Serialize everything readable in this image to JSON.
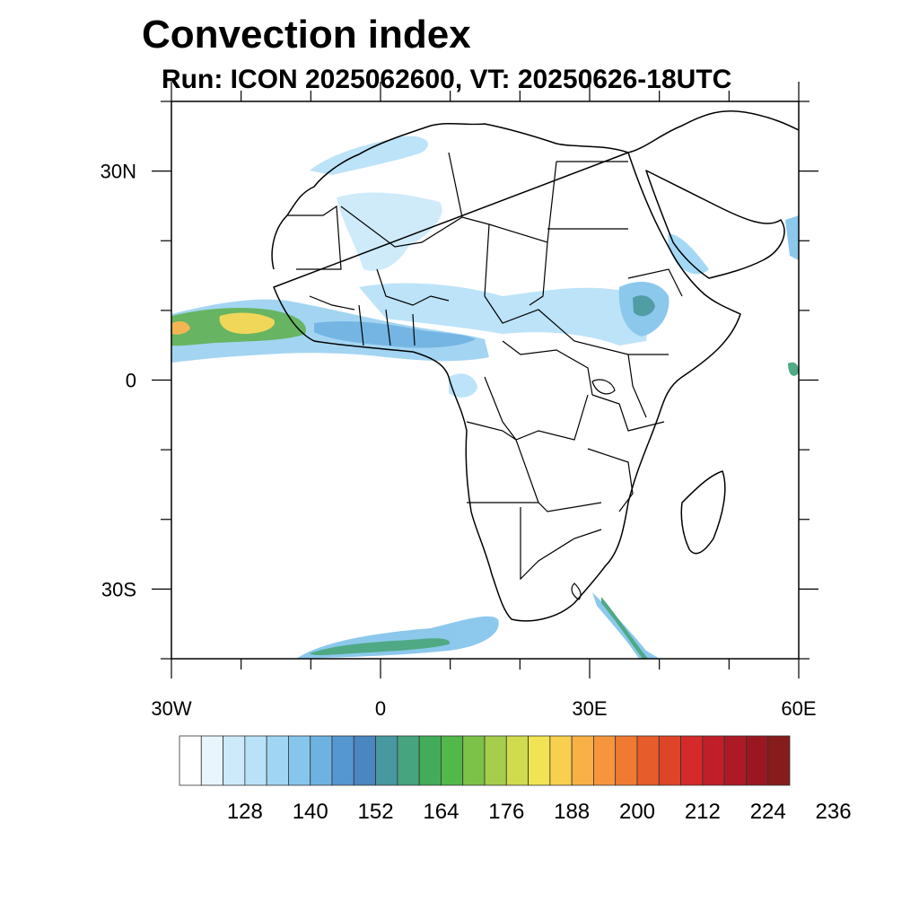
{
  "title": "Convection index",
  "subtitle": "Run: ICON 2025062600,  VT: 20250626-18UTC",
  "map": {
    "lon_range": [
      -30,
      60
    ],
    "lat_range": [
      -40,
      40
    ],
    "lat_ticks": [
      {
        "value": 30,
        "label": "30N"
      },
      {
        "value": 0,
        "label": "0"
      },
      {
        "value": -30,
        "label": "30S"
      }
    ],
    "lon_ticks": [
      {
        "value": -30,
        "label": "30W"
      },
      {
        "value": 0,
        "label": "0"
      },
      {
        "value": 30,
        "label": "30E"
      },
      {
        "value": 60,
        "label": "60E"
      }
    ]
  },
  "colorbar": {
    "colors": [
      "#ffffff",
      "#e8f5fc",
      "#cdeafa",
      "#b9e2f8",
      "#a0d6f4",
      "#86c6ec",
      "#6eb2e2",
      "#5597d0",
      "#4a86bf",
      "#4798a0",
      "#46a57e",
      "#42ac5a",
      "#52b84a",
      "#7cc249",
      "#a6cd4b",
      "#d0db4e",
      "#f0e454",
      "#f9cf50",
      "#f8b047",
      "#f6953d",
      "#f07a32",
      "#e65c2a",
      "#de4428",
      "#d42a2a",
      "#c01f2a",
      "#ad1a26",
      "#9a1721",
      "#871c1c"
    ],
    "labels": [
      "128",
      "140",
      "152",
      "164",
      "176",
      "188",
      "200",
      "212",
      "224",
      "236"
    ]
  }
}
